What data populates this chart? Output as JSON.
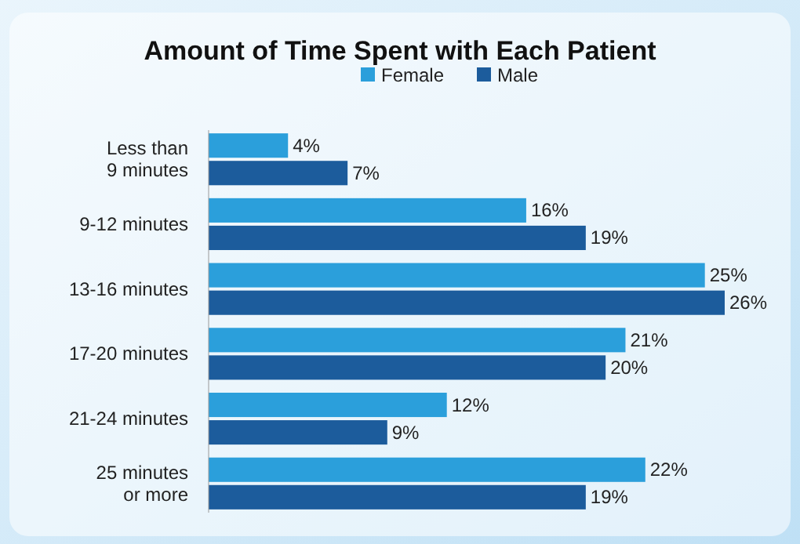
{
  "chart_data": {
    "type": "bar",
    "orientation": "horizontal",
    "title": "Amount of Time Spent with Each Patient",
    "categories": [
      "Less than\n9 minutes",
      "9-12 minutes",
      "13-16 minutes",
      "17-20 minutes",
      "21-24 minutes",
      "25 minutes\nor more"
    ],
    "series": [
      {
        "name": "Female",
        "color": "#2b9fdb",
        "values": [
          4,
          16,
          25,
          21,
          12,
          22
        ],
        "value_labels": [
          "4%",
          "16%",
          "25%",
          "21%",
          "12%",
          "22%"
        ]
      },
      {
        "name": "Male",
        "color": "#1c5c9c",
        "values": [
          7,
          19,
          26,
          20,
          9,
          19
        ],
        "value_labels": [
          "7%",
          "19%",
          "26%",
          "20%",
          "9%",
          "19%"
        ]
      }
    ],
    "legend": "top"
  }
}
